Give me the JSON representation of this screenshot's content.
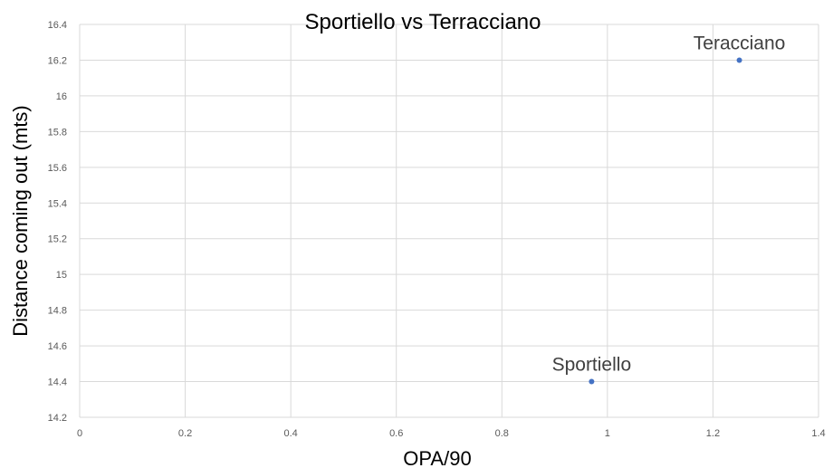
{
  "chart_data": {
    "type": "scatter",
    "title": "Sportiello vs Terracciano",
    "xlabel": "OPA/90",
    "ylabel": "Distance coming out (mts)",
    "xlim": [
      0,
      1.4
    ],
    "ylim": [
      14.2,
      16.4
    ],
    "x_ticks": [
      "0",
      "0.2",
      "0.4",
      "0.6",
      "0.8",
      "1",
      "1.2",
      "1.4"
    ],
    "y_ticks": [
      "14.2",
      "14.4",
      "14.6",
      "14.8",
      "15",
      "15.2",
      "15.4",
      "15.6",
      "15.8",
      "16",
      "16.2",
      "16.4"
    ],
    "grid": true,
    "legend": "none",
    "point_color": "#4472c4",
    "points": [
      {
        "label": "Sportiello",
        "x": 0.97,
        "y": 14.4
      },
      {
        "label": "Teracciano",
        "x": 1.25,
        "y": 16.2
      }
    ]
  }
}
